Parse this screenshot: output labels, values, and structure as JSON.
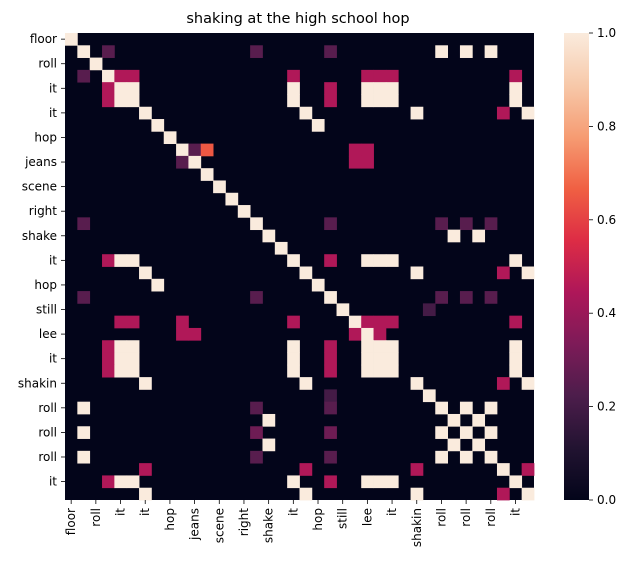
{
  "chart_data": {
    "type": "heatmap",
    "title": "shaking at the high school hop",
    "labels": [
      "floor",
      "roll",
      "it",
      "it",
      "hop",
      "jeans",
      "scene",
      "right",
      "shake",
      "it",
      "hop",
      "still",
      "lee",
      "it",
      "shakin",
      "roll",
      "roll",
      "roll",
      "it"
    ],
    "colorbar": {
      "ticks": [
        "0.0",
        "0.2",
        "0.4",
        "0.6",
        "0.8",
        "1.0"
      ],
      "range": [
        0,
        1
      ],
      "colormap": "rocket",
      "stops": [
        "#03051a",
        "#221331",
        "#4c1d4b",
        "#7d1b58",
        "#ae1759",
        "#dd2c45",
        "#f06043",
        "#f69c73",
        "#f7c9aa",
        "#faebdd"
      ]
    },
    "grid": {
      "rows": 38,
      "cols": 38,
      "cells": [
        [
          0,
          0,
          1
        ],
        [
          1,
          1,
          1
        ],
        [
          1,
          3,
          0.25
        ],
        [
          1,
          15,
          0.25
        ],
        [
          1,
          21,
          0.25
        ],
        [
          1,
          30,
          1
        ],
        [
          1,
          32,
          1
        ],
        [
          1,
          34,
          1
        ],
        [
          2,
          2,
          1
        ],
        [
          3,
          1,
          0.25
        ],
        [
          3,
          3,
          1
        ],
        [
          3,
          4,
          0.45
        ],
        [
          3,
          5,
          0.45
        ],
        [
          3,
          18,
          0.45
        ],
        [
          3,
          24,
          0.45
        ],
        [
          3,
          25,
          0.45
        ],
        [
          3,
          26,
          0.45
        ],
        [
          3,
          36,
          0.45
        ],
        [
          4,
          3,
          0.45
        ],
        [
          4,
          4,
          1
        ],
        [
          4,
          5,
          1
        ],
        [
          4,
          18,
          1
        ],
        [
          4,
          21,
          0.45
        ],
        [
          4,
          24,
          1
        ],
        [
          4,
          25,
          1
        ],
        [
          4,
          26,
          1
        ],
        [
          4,
          36,
          1
        ],
        [
          5,
          3,
          0.45
        ],
        [
          5,
          4,
          1
        ],
        [
          5,
          5,
          1
        ],
        [
          5,
          18,
          1
        ],
        [
          5,
          21,
          0.45
        ],
        [
          5,
          24,
          1
        ],
        [
          5,
          25,
          1
        ],
        [
          5,
          26,
          1
        ],
        [
          5,
          36,
          1
        ],
        [
          6,
          6,
          1
        ],
        [
          6,
          19,
          1
        ],
        [
          6,
          28,
          1
        ],
        [
          6,
          35,
          0.45
        ],
        [
          6,
          37,
          1
        ],
        [
          7,
          7,
          1
        ],
        [
          7,
          20,
          1
        ],
        [
          8,
          8,
          1
        ],
        [
          9,
          9,
          1
        ],
        [
          9,
          10,
          0.25
        ],
        [
          9,
          11,
          0.65
        ],
        [
          9,
          23,
          0.45
        ],
        [
          9,
          24,
          0.45
        ],
        [
          10,
          9,
          0.25
        ],
        [
          10,
          10,
          1
        ],
        [
          10,
          23,
          0.45
        ],
        [
          10,
          24,
          0.45
        ],
        [
          11,
          11,
          1
        ],
        [
          12,
          12,
          1
        ],
        [
          13,
          13,
          1
        ],
        [
          14,
          14,
          1
        ],
        [
          15,
          1,
          0.25
        ],
        [
          15,
          15,
          1
        ],
        [
          15,
          21,
          0.25
        ],
        [
          15,
          30,
          0.25
        ],
        [
          15,
          32,
          0.25
        ],
        [
          15,
          34,
          0.25
        ],
        [
          16,
          16,
          1
        ],
        [
          16,
          31,
          1
        ],
        [
          16,
          33,
          1
        ],
        [
          17,
          17,
          1
        ],
        [
          18,
          3,
          0.45
        ],
        [
          18,
          4,
          1
        ],
        [
          18,
          5,
          1
        ],
        [
          18,
          18,
          1
        ],
        [
          18,
          21,
          0.45
        ],
        [
          18,
          24,
          1
        ],
        [
          18,
          25,
          1
        ],
        [
          18,
          26,
          1
        ],
        [
          18,
          36,
          1
        ],
        [
          19,
          6,
          1
        ],
        [
          19,
          19,
          1
        ],
        [
          19,
          28,
          1
        ],
        [
          19,
          35,
          0.45
        ],
        [
          19,
          37,
          1
        ],
        [
          20,
          7,
          1
        ],
        [
          20,
          20,
          1
        ],
        [
          21,
          1,
          0.25
        ],
        [
          21,
          15,
          0.25
        ],
        [
          21,
          21,
          1
        ],
        [
          21,
          30,
          0.25
        ],
        [
          21,
          32,
          0.25
        ],
        [
          21,
          34,
          0.25
        ],
        [
          22,
          22,
          1
        ],
        [
          22,
          29,
          0.2
        ],
        [
          23,
          4,
          0.45
        ],
        [
          23,
          5,
          0.45
        ],
        [
          23,
          9,
          0.45
        ],
        [
          23,
          18,
          0.45
        ],
        [
          23,
          23,
          1
        ],
        [
          23,
          24,
          0.45
        ],
        [
          23,
          25,
          0.45
        ],
        [
          23,
          26,
          0.45
        ],
        [
          23,
          36,
          0.45
        ],
        [
          24,
          9,
          0.45
        ],
        [
          24,
          10,
          0.45
        ],
        [
          24,
          23,
          0.45
        ],
        [
          24,
          24,
          1
        ],
        [
          24,
          25,
          0.45
        ],
        [
          25,
          3,
          0.45
        ],
        [
          25,
          4,
          1
        ],
        [
          25,
          5,
          1
        ],
        [
          25,
          18,
          1
        ],
        [
          25,
          21,
          0.45
        ],
        [
          25,
          24,
          1
        ],
        [
          25,
          25,
          1
        ],
        [
          25,
          26,
          1
        ],
        [
          25,
          36,
          1
        ],
        [
          26,
          3,
          0.45
        ],
        [
          26,
          4,
          1
        ],
        [
          26,
          5,
          1
        ],
        [
          26,
          18,
          1
        ],
        [
          26,
          21,
          0.45
        ],
        [
          26,
          24,
          1
        ],
        [
          26,
          25,
          1
        ],
        [
          26,
          26,
          1
        ],
        [
          26,
          36,
          1
        ],
        [
          27,
          3,
          0.45
        ],
        [
          27,
          4,
          1
        ],
        [
          27,
          5,
          1
        ],
        [
          27,
          18,
          1
        ],
        [
          27,
          21,
          0.45
        ],
        [
          27,
          24,
          1
        ],
        [
          27,
          25,
          1
        ],
        [
          27,
          26,
          1
        ],
        [
          27,
          36,
          1
        ],
        [
          28,
          6,
          1
        ],
        [
          28,
          19,
          1
        ],
        [
          28,
          28,
          1
        ],
        [
          28,
          35,
          0.45
        ],
        [
          28,
          37,
          1
        ],
        [
          29,
          21,
          0.2
        ],
        [
          29,
          29,
          1
        ],
        [
          30,
          1,
          1
        ],
        [
          30,
          15,
          0.25
        ],
        [
          30,
          21,
          0.25
        ],
        [
          30,
          30,
          1
        ],
        [
          30,
          32,
          1
        ],
        [
          30,
          34,
          1
        ],
        [
          31,
          16,
          1
        ],
        [
          31,
          31,
          1
        ],
        [
          31,
          33,
          1
        ],
        [
          32,
          1,
          1
        ],
        [
          32,
          15,
          0.3
        ],
        [
          32,
          21,
          0.3
        ],
        [
          32,
          30,
          1
        ],
        [
          32,
          32,
          1
        ],
        [
          32,
          34,
          1
        ],
        [
          33,
          16,
          1
        ],
        [
          33,
          31,
          1
        ],
        [
          33,
          33,
          1
        ],
        [
          34,
          1,
          1
        ],
        [
          34,
          15,
          0.25
        ],
        [
          34,
          21,
          0.25
        ],
        [
          34,
          30,
          1
        ],
        [
          34,
          32,
          1
        ],
        [
          34,
          34,
          1
        ],
        [
          35,
          6,
          0.45
        ],
        [
          35,
          19,
          0.45
        ],
        [
          35,
          28,
          0.45
        ],
        [
          35,
          35,
          1
        ],
        [
          35,
          37,
          0.45
        ],
        [
          36,
          3,
          0.45
        ],
        [
          36,
          4,
          1
        ],
        [
          36,
          5,
          1
        ],
        [
          36,
          18,
          1
        ],
        [
          36,
          21,
          0.45
        ],
        [
          36,
          24,
          1
        ],
        [
          36,
          25,
          1
        ],
        [
          36,
          26,
          1
        ],
        [
          36,
          36,
          1
        ],
        [
          37,
          6,
          1
        ],
        [
          37,
          19,
          1
        ],
        [
          37,
          28,
          1
        ],
        [
          37,
          35,
          0.45
        ],
        [
          37,
          37,
          1
        ]
      ]
    }
  }
}
